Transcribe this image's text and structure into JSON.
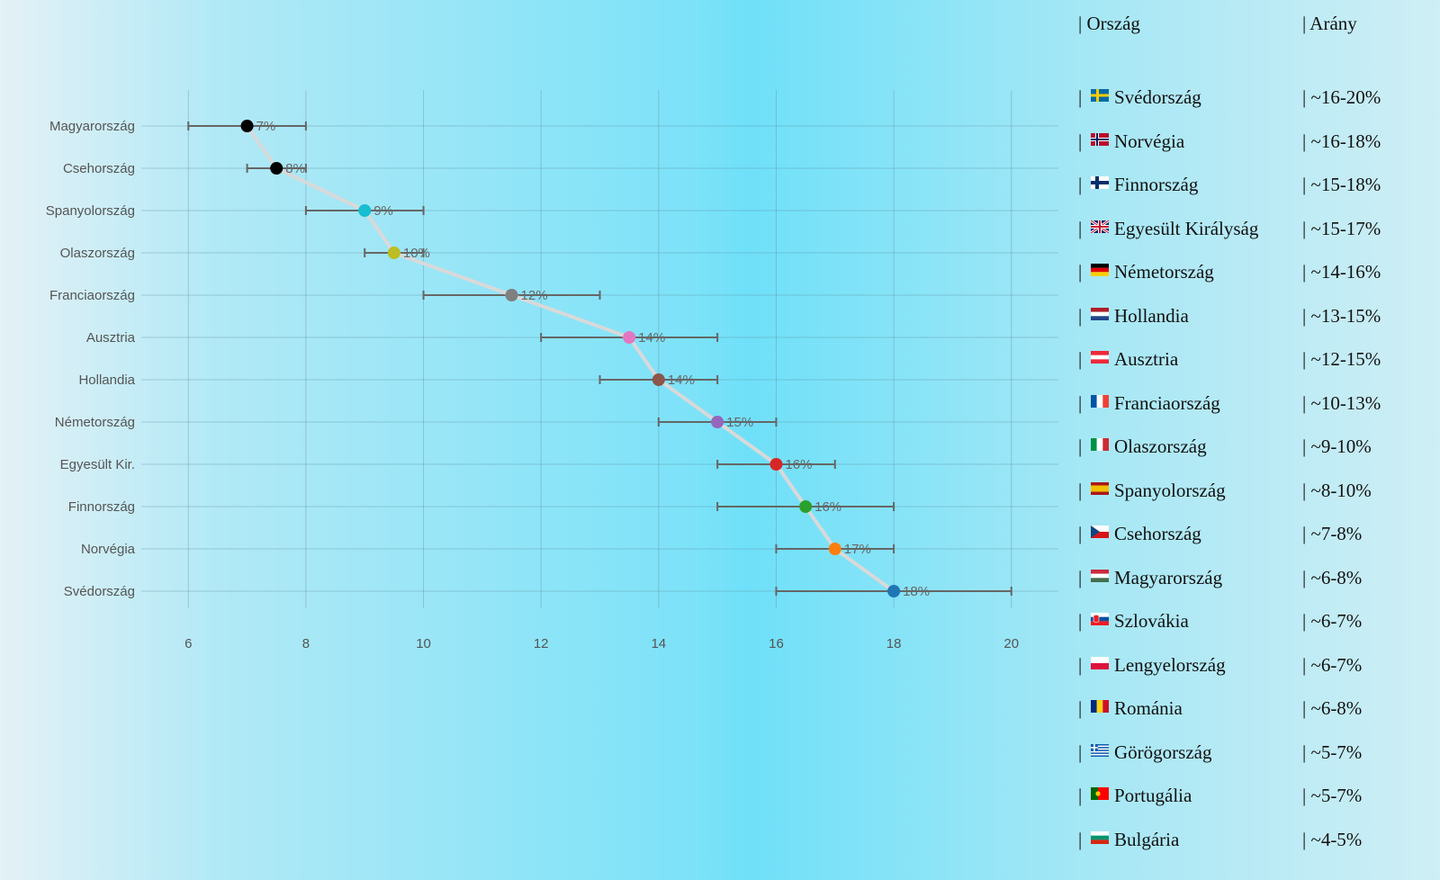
{
  "chart_data": {
    "type": "scatter",
    "title": "",
    "xlabel": "",
    "ylabel": "",
    "xlim": [
      5.2,
      20.8
    ],
    "x_ticks": [
      6,
      8,
      10,
      12,
      14,
      16,
      18,
      20
    ],
    "grid": true,
    "legend": "none",
    "categories": [
      "Magyarország",
      "Csehország",
      "Spanyolország",
      "Olaszország",
      "Franciaország",
      "Ausztria",
      "Hollandia",
      "Németország",
      "Egyesült Kir.",
      "Finnország",
      "Norvégia",
      "Svédország"
    ],
    "values": [
      7,
      7.5,
      9,
      9.5,
      11.5,
      13.5,
      14,
      15,
      16,
      16.5,
      17,
      18
    ],
    "error_low": [
      6,
      7,
      8,
      9,
      10,
      12,
      13,
      14,
      15,
      15,
      16,
      16
    ],
    "error_high": [
      8,
      8,
      10,
      10,
      13,
      15,
      15,
      16,
      17,
      18,
      18,
      20
    ],
    "point_labels": [
      "7%",
      "8%",
      "9%",
      "10%",
      "12%",
      "14%",
      "14%",
      "15%",
      "16%",
      "16%",
      "17%",
      "18%"
    ],
    "point_colors": [
      "#000000",
      "#000000",
      "#17becf",
      "#bcbd22",
      "#7f7f7f",
      "#e377c2",
      "#8c564b",
      "#9467bd",
      "#d62728",
      "#2ca02c",
      "#ff7f0e",
      "#1f77b4"
    ],
    "connector_color": "#d9d9d9",
    "errorbar_color": "#666666"
  },
  "table": {
    "header_country": "| Ország",
    "header_rate": "| Arány",
    "rows": [
      {
        "flag": "SE",
        "prefix": "|",
        "country": "Svédország",
        "rate": "| ~16-20%"
      },
      {
        "flag": "NO",
        "prefix": "|",
        "country": "Norvégia",
        "rate": "| ~16-18%"
      },
      {
        "flag": "FI",
        "prefix": "|",
        "country": "Finnország",
        "rate": "| ~15-18%"
      },
      {
        "flag": "GB",
        "prefix": "|",
        "country": "Egyesült Királyság",
        "rate": "| ~15-17%"
      },
      {
        "flag": "DE",
        "prefix": "|",
        "country": "Németország",
        "rate": "| ~14-16%"
      },
      {
        "flag": "NL",
        "prefix": "|",
        "country": "Hollandia",
        "rate": "| ~13-15%"
      },
      {
        "flag": "AT",
        "prefix": "|",
        "country": "Ausztria",
        "rate": "| ~12-15%"
      },
      {
        "flag": "FR",
        "prefix": "|",
        "country": "Franciaország",
        "rate": "| ~10-13%"
      },
      {
        "flag": "IT",
        "prefix": "|",
        "country": "Olaszország",
        "rate": "| ~9-10%"
      },
      {
        "flag": "ES",
        "prefix": "|",
        "country": "Spanyolország",
        "rate": "| ~8-10%"
      },
      {
        "flag": "CZ",
        "prefix": "|",
        "country": "Csehország",
        "rate": "| ~7-8%"
      },
      {
        "flag": "HU",
        "prefix": "|",
        "country": "Magyarország",
        "rate": "| ~6-8%"
      },
      {
        "flag": "SK",
        "prefix": "|",
        "country": "Szlovákia",
        "rate": "| ~6-7%"
      },
      {
        "flag": "PL",
        "prefix": "|",
        "country": "Lengyelország",
        "rate": "| ~6-7%"
      },
      {
        "flag": "RO",
        "prefix": "|",
        "country": "Románia",
        "rate": "| ~6-8%"
      },
      {
        "flag": "GR",
        "prefix": "|",
        "country": "Görögország",
        "rate": "| ~5-7%"
      },
      {
        "flag": "PT",
        "prefix": "|",
        "country": "Portugália",
        "rate": "| ~5-7%"
      },
      {
        "flag": "BG",
        "prefix": "|",
        "country": "Bulgária",
        "rate": "| ~4-5%"
      }
    ]
  }
}
